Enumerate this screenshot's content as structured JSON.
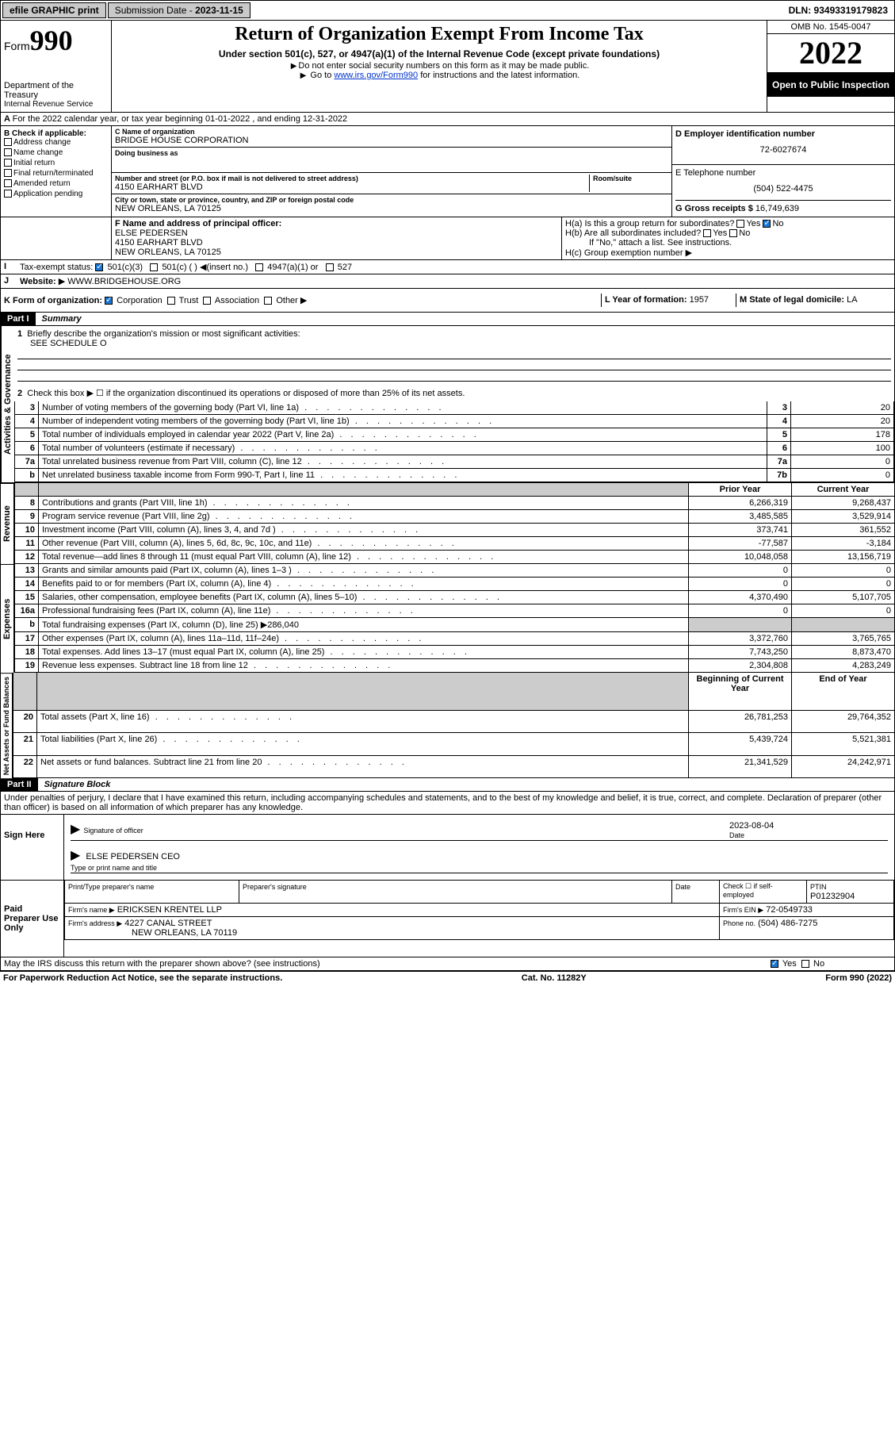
{
  "topbar": {
    "efile": "efile GRAPHIC print",
    "subdate_label": "Submission Date - ",
    "subdate": "2023-11-15",
    "dln": "DLN: 93493319179823"
  },
  "header": {
    "form_label": "Form",
    "form_num": "990",
    "dept": "Department of the Treasury",
    "irs": "Internal Revenue Service",
    "title": "Return of Organization Exempt From Income Tax",
    "subtitle": "Under section 501(c), 527, or 4947(a)(1) of the Internal Revenue Code (except private foundations)",
    "note1": "Do not enter social security numbers on this form as it may be made public.",
    "note2_pre": "Go to ",
    "note2_link": "www.irs.gov/Form990",
    "note2_post": " for instructions and the latest information.",
    "omb": "OMB No. 1545-0047",
    "year": "2022",
    "open": "Open to Public Inspection"
  },
  "row_a": "For the 2022 calendar year, or tax year beginning 01-01-2022   , and ending 12-31-2022",
  "col_b": {
    "hdr": "B Check if applicable:",
    "items": [
      "Address change",
      "Name change",
      "Initial return",
      "Final return/terminated",
      "Amended return",
      "Application pending"
    ]
  },
  "col_c": {
    "name_lbl": "C Name of organization",
    "name": "BRIDGE HOUSE CORPORATION",
    "dba_lbl": "Doing business as",
    "street_lbl": "Number and street (or P.O. box if mail is not delivered to street address)",
    "room_lbl": "Room/suite",
    "street": "4150 EARHART BLVD",
    "city_lbl": "City or town, state or province, country, and ZIP or foreign postal code",
    "city": "NEW ORLEANS, LA  70125"
  },
  "col_d": {
    "ein_lbl": "D Employer identification number",
    "ein": "72-6027674",
    "tel_lbl": "E Telephone number",
    "tel": "(504) 522-4475",
    "gross_lbl": "G Gross receipts $",
    "gross": "16,749,639"
  },
  "row_f": {
    "lbl": "F  Name and address of principal officer:",
    "name": "ELSE PEDERSEN",
    "addr1": "4150 EARHART BLVD",
    "addr2": "NEW ORLEANS, LA  70125"
  },
  "row_h": {
    "ha": "H(a)  Is this a group return for subordinates?",
    "hb": "H(b)  Are all subordinates included?",
    "hb_note": "If \"No,\" attach a list. See instructions.",
    "hc": "H(c)  Group exemption number",
    "yes": "Yes",
    "no": "No"
  },
  "row_i": {
    "lbl": "Tax-exempt status:",
    "opts": [
      "501(c)(3)",
      "501(c) (  )  ◀(insert no.)",
      "4947(a)(1) or",
      "527"
    ]
  },
  "row_j": {
    "lbl": "Website:",
    "val": "WWW.BRIDGEHOUSE.ORG"
  },
  "row_k": {
    "lbl": "K Form of organization:",
    "opts": [
      "Corporation",
      "Trust",
      "Association",
      "Other"
    ],
    "l_lbl": "L Year of formation:",
    "l_val": "1957",
    "m_lbl": "M State of legal domicile:",
    "m_val": "LA"
  },
  "part1": {
    "hdr": "Part I",
    "title": "Summary",
    "q1": "Briefly describe the organization's mission or most significant activities:",
    "q1_val": "SEE SCHEDULE O",
    "q2": "Check this box ▶ ☐  if the organization discontinued its operations or disposed of more than 25% of its net assets.",
    "lines": [
      {
        "n": "3",
        "t": "Number of voting members of the governing body (Part VI, line 1a)",
        "b": "3",
        "v": "20"
      },
      {
        "n": "4",
        "t": "Number of independent voting members of the governing body (Part VI, line 1b)",
        "b": "4",
        "v": "20"
      },
      {
        "n": "5",
        "t": "Total number of individuals employed in calendar year 2022 (Part V, line 2a)",
        "b": "5",
        "v": "178"
      },
      {
        "n": "6",
        "t": "Total number of volunteers (estimate if necessary)",
        "b": "6",
        "v": "100"
      },
      {
        "n": "7a",
        "t": "Total unrelated business revenue from Part VIII, column (C), line 12",
        "b": "7a",
        "v": "0"
      },
      {
        "n": "b",
        "t": "Net unrelated business taxable income from Form 990-T, Part I, line 11",
        "b": "7b",
        "v": "0"
      }
    ],
    "col_prior": "Prior Year",
    "col_curr": "Current Year",
    "revenue": [
      {
        "n": "8",
        "t": "Contributions and grants (Part VIII, line 1h)",
        "p": "6,266,319",
        "c": "9,268,437"
      },
      {
        "n": "9",
        "t": "Program service revenue (Part VIII, line 2g)",
        "p": "3,485,585",
        "c": "3,529,914"
      },
      {
        "n": "10",
        "t": "Investment income (Part VIII, column (A), lines 3, 4, and 7d )",
        "p": "373,741",
        "c": "361,552"
      },
      {
        "n": "11",
        "t": "Other revenue (Part VIII, column (A), lines 5, 6d, 8c, 9c, 10c, and 11e)",
        "p": "-77,587",
        "c": "-3,184"
      },
      {
        "n": "12",
        "t": "Total revenue—add lines 8 through 11 (must equal Part VIII, column (A), line 12)",
        "p": "10,048,058",
        "c": "13,156,719"
      }
    ],
    "expenses": [
      {
        "n": "13",
        "t": "Grants and similar amounts paid (Part IX, column (A), lines 1–3 )",
        "p": "0",
        "c": "0"
      },
      {
        "n": "14",
        "t": "Benefits paid to or for members (Part IX, column (A), line 4)",
        "p": "0",
        "c": "0"
      },
      {
        "n": "15",
        "t": "Salaries, other compensation, employee benefits (Part IX, column (A), lines 5–10)",
        "p": "4,370,490",
        "c": "5,107,705"
      },
      {
        "n": "16a",
        "t": "Professional fundraising fees (Part IX, column (A), line 11e)",
        "p": "0",
        "c": "0"
      },
      {
        "n": "b",
        "t": "Total fundraising expenses (Part IX, column (D), line 25) ▶286,040",
        "p": "",
        "c": "",
        "shade": true
      },
      {
        "n": "17",
        "t": "Other expenses (Part IX, column (A), lines 11a–11d, 11f–24e)",
        "p": "3,372,760",
        "c": "3,765,765"
      },
      {
        "n": "18",
        "t": "Total expenses. Add lines 13–17 (must equal Part IX, column (A), line 25)",
        "p": "7,743,250",
        "c": "8,873,470"
      },
      {
        "n": "19",
        "t": "Revenue less expenses. Subtract line 18 from line 12",
        "p": "2,304,808",
        "c": "4,283,249"
      }
    ],
    "col_begin": "Beginning of Current Year",
    "col_end": "End of Year",
    "netassets": [
      {
        "n": "20",
        "t": "Total assets (Part X, line 16)",
        "p": "26,781,253",
        "c": "29,764,352"
      },
      {
        "n": "21",
        "t": "Total liabilities (Part X, line 26)",
        "p": "5,439,724",
        "c": "5,521,381"
      },
      {
        "n": "22",
        "t": "Net assets or fund balances. Subtract line 21 from line 20",
        "p": "21,341,529",
        "c": "24,242,971"
      }
    ],
    "vtabs": [
      "Activities & Governance",
      "Revenue",
      "Expenses",
      "Net Assets or Fund Balances"
    ]
  },
  "part2": {
    "hdr": "Part II",
    "title": "Signature Block",
    "decl": "Under penalties of perjury, I declare that I have examined this return, including accompanying schedules and statements, and to the best of my knowledge and belief, it is true, correct, and complete. Declaration of preparer (other than officer) is based on all information of which preparer has any knowledge.",
    "sign_here": "Sign Here",
    "sig_officer": "Signature of officer",
    "sig_date": "Date",
    "sig_date_val": "2023-08-04",
    "officer": "ELSE PEDERSEN CEO",
    "officer_lbl": "Type or print name and title",
    "paid_hdr": "Paid Preparer Use Only",
    "prep_name_lbl": "Print/Type preparer's name",
    "prep_sig_lbl": "Preparer's signature",
    "date_lbl": "Date",
    "check_lbl": "Check ☐ if self-employed",
    "ptin_lbl": "PTIN",
    "ptin": "P01232904",
    "firm_name_lbl": "Firm's name  ▶",
    "firm_name": "ERICKSEN KRENTEL LLP",
    "firm_ein_lbl": "Firm's EIN ▶",
    "firm_ein": "72-0549733",
    "firm_addr_lbl": "Firm's address ▶",
    "firm_addr1": "4227 CANAL STREET",
    "firm_addr2": "NEW ORLEANS, LA  70119",
    "phone_lbl": "Phone no.",
    "phone": "(504) 486-7275",
    "may_irs": "May the IRS discuss this return with the preparer shown above? (see instructions)"
  },
  "footer": {
    "left": "For Paperwork Reduction Act Notice, see the separate instructions.",
    "mid": "Cat. No. 11282Y",
    "right": "Form 990 (2022)"
  }
}
